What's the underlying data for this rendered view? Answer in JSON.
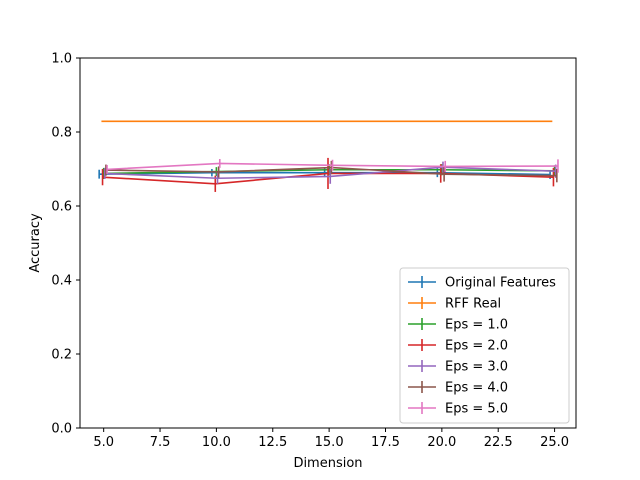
{
  "chart_data": {
    "type": "line",
    "title": "",
    "xlabel": "Dimension",
    "ylabel": "Accuracy",
    "xlim": [
      3.95,
      25.95
    ],
    "ylim": [
      0.0,
      1.0
    ],
    "x_ticks": [
      "5.0",
      "7.5",
      "10.0",
      "12.5",
      "15.0",
      "17.5",
      "20.0",
      "22.5",
      "25.0"
    ],
    "y_ticks": [
      "0.0",
      "0.2",
      "0.4",
      "0.6",
      "0.8",
      "1.0"
    ],
    "grid": false,
    "legend_position": "lower-right",
    "x": [
      5,
      10,
      15,
      20,
      25
    ],
    "series": [
      {
        "name": "Original Features",
        "color": "#1f77b4",
        "offset": -0.2,
        "values": [
          0.686,
          0.69,
          0.69,
          0.69,
          0.685
        ],
        "err": [
          0.012,
          0.01,
          0.012,
          0.012,
          0.012
        ]
      },
      {
        "name": "RFF Real",
        "color": "#ff7f0e",
        "offset": -0.1,
        "values": [
          0.829,
          0.829,
          0.829,
          0.829,
          0.829
        ],
        "err": [
          0.0,
          0.0,
          0.0,
          0.0,
          0.0
        ]
      },
      {
        "name": "Eps = 1.0",
        "color": "#2ca02c",
        "offset": 0.0,
        "values": [
          0.688,
          0.693,
          0.698,
          0.698,
          0.695
        ],
        "err": [
          0.015,
          0.012,
          0.015,
          0.015,
          0.015
        ]
      },
      {
        "name": "Eps = 2.0",
        "color": "#d62728",
        "offset": -0.05,
        "values": [
          0.678,
          0.66,
          0.688,
          0.688,
          0.678
        ],
        "err": [
          0.022,
          0.022,
          0.042,
          0.025,
          0.025
        ]
      },
      {
        "name": "Eps = 3.0",
        "color": "#9467bd",
        "offset": 0.05,
        "values": [
          0.688,
          0.675,
          0.68,
          0.705,
          0.694
        ],
        "err": [
          0.015,
          0.015,
          0.02,
          0.015,
          0.018
        ]
      },
      {
        "name": "Eps = 4.0",
        "color": "#8c564b",
        "offset": 0.1,
        "values": [
          0.697,
          0.692,
          0.704,
          0.686,
          0.682
        ],
        "err": [
          0.015,
          0.015,
          0.018,
          0.02,
          0.018
        ]
      },
      {
        "name": "Eps = 5.0",
        "color": "#e377c2",
        "offset": 0.15,
        "values": [
          0.699,
          0.715,
          0.71,
          0.707,
          0.708
        ],
        "err": [
          0.012,
          0.012,
          0.015,
          0.015,
          0.018
        ]
      }
    ]
  }
}
